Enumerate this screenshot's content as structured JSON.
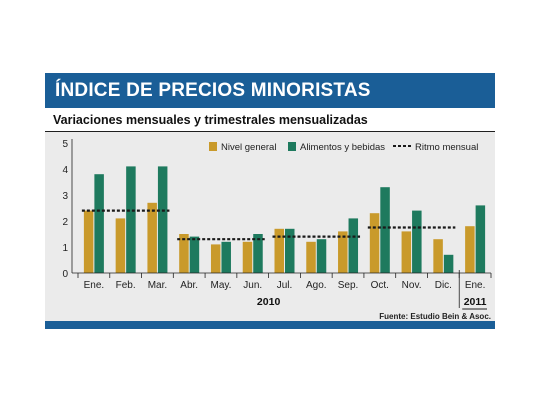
{
  "header": {
    "title": "ÍNDICE DE PRECIOS MINORISTAS",
    "subtitle": "Variaciones mensuales y trimestrales mensualizadas"
  },
  "colors": {
    "header_bar": "#1a5e97",
    "nivel_general": "#c99a2b",
    "alimentos": "#1e7a5e",
    "ritmo": "#1a1a1a",
    "background": "#ebebeb"
  },
  "chart_data": {
    "type": "bar",
    "categories": [
      "Ene.",
      "Feb.",
      "Mar.",
      "Abr.",
      "May.",
      "Jun.",
      "Jul.",
      "Ago.",
      "Sep.",
      "Oct.",
      "Nov.",
      "Dic.",
      "Ene."
    ],
    "year_labels": [
      {
        "label": "2010",
        "from": 0,
        "to": 11
      },
      {
        "label": "2011",
        "from": 12,
        "to": 12
      }
    ],
    "series": [
      {
        "name": "Nivel general",
        "values": [
          2.4,
          2.1,
          2.7,
          1.5,
          1.1,
          1.2,
          1.7,
          1.2,
          1.6,
          2.3,
          1.6,
          1.3,
          1.8
        ]
      },
      {
        "name": "Alimentos y bebidas",
        "values": [
          3.8,
          4.1,
          4.1,
          1.4,
          1.2,
          1.5,
          1.7,
          1.3,
          2.1,
          3.3,
          2.4,
          0.7,
          2.6
        ]
      }
    ],
    "ritmo_mensual": {
      "name": "Ritmo mensual",
      "segments": [
        {
          "from": 0,
          "to": 2,
          "value": 2.4
        },
        {
          "from": 3,
          "to": 5,
          "value": 1.3
        },
        {
          "from": 6,
          "to": 8,
          "value": 1.4
        },
        {
          "from": 9,
          "to": 11,
          "value": 1.75
        }
      ]
    },
    "y_ticks": [
      0,
      1,
      2,
      3,
      4,
      5
    ],
    "ylim": [
      0,
      5
    ],
    "legend_position": "top-right",
    "source": "Fuente: Estudio Bein & Asoc."
  }
}
